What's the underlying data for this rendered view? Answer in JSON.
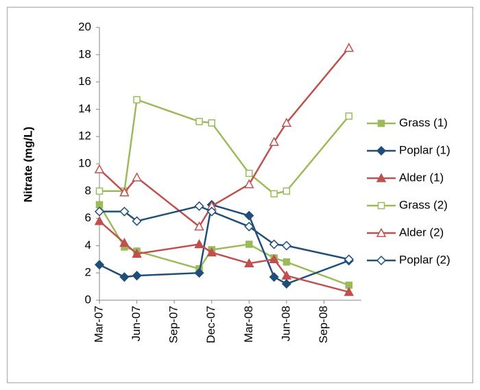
{
  "chart_data": {
    "type": "line",
    "y_label": "Nitrate (mg/L)",
    "x": [
      "2007-03",
      "2007-05",
      "2007-06",
      "2007-11",
      "2007-12",
      "2008-03",
      "2008-05",
      "2008-06",
      "2008-11"
    ],
    "xlim": [
      "2007-03",
      "2008-12"
    ],
    "xticks": [
      {
        "value": "2007-03",
        "label": "Mar-07"
      },
      {
        "value": "2007-06",
        "label": "Jun-07"
      },
      {
        "value": "2007-09",
        "label": "Sep-07"
      },
      {
        "value": "2007-12",
        "label": "Dec-07"
      },
      {
        "value": "2008-03",
        "label": "Mar-08"
      },
      {
        "value": "2008-06",
        "label": "Jun-08"
      },
      {
        "value": "2008-09",
        "label": "Sep-08"
      }
    ],
    "ylim": [
      0,
      20
    ],
    "yticks": [
      0,
      2,
      4,
      6,
      8,
      10,
      12,
      14,
      16,
      18,
      20
    ],
    "legend": "right",
    "series": [
      {
        "name": "Grass (1)",
        "color": "#9bbb59",
        "marker": "square",
        "open": false,
        "values": [
          7.0,
          3.9,
          3.6,
          2.3,
          3.7,
          4.1,
          3.1,
          2.8,
          1.1
        ]
      },
      {
        "name": "Poplar (1)",
        "color": "#1f4e79",
        "marker": "diamond",
        "open": false,
        "values": [
          2.6,
          1.7,
          1.8,
          2.0,
          7.0,
          6.2,
          1.7,
          1.2,
          2.9
        ]
      },
      {
        "name": "Alder (1)",
        "color": "#c0504d",
        "marker": "triangle",
        "open": false,
        "values": [
          5.8,
          4.2,
          3.4,
          4.1,
          3.5,
          2.7,
          3.0,
          1.8,
          0.6
        ]
      },
      {
        "name": "Grass (2)",
        "color": "#9bbb59",
        "marker": "square",
        "open": true,
        "values": [
          8.0,
          8.0,
          14.7,
          13.1,
          13.0,
          9.3,
          7.8,
          8.0,
          13.5
        ]
      },
      {
        "name": "Alder (2)",
        "color": "#c0504d",
        "marker": "triangle",
        "open": true,
        "values": [
          9.6,
          7.9,
          9.0,
          5.4,
          6.9,
          8.5,
          11.6,
          13.0,
          18.5
        ]
      },
      {
        "name": "Poplar (2)",
        "color": "#1f4e79",
        "marker": "diamond",
        "open": true,
        "values": [
          6.5,
          6.5,
          5.8,
          6.9,
          6.5,
          5.4,
          4.1,
          4.0,
          3.0
        ]
      }
    ]
  }
}
